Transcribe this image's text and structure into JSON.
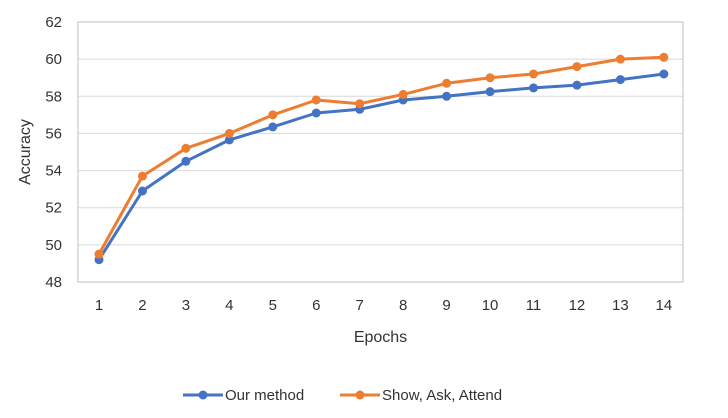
{
  "chart_data": {
    "type": "line",
    "title": "",
    "xlabel": "Epochs",
    "ylabel": "Accuracy",
    "x": [
      1,
      2,
      3,
      4,
      5,
      6,
      7,
      8,
      9,
      10,
      11,
      12,
      13,
      14
    ],
    "ylim": [
      48,
      62
    ],
    "yticks": [
      48,
      50,
      52,
      54,
      56,
      58,
      60,
      62
    ],
    "grid": "horizontal",
    "legend_position": "bottom",
    "series": [
      {
        "name": "Our method",
        "color": "#4472C4",
        "values": [
          49.2,
          52.9,
          54.5,
          55.65,
          56.35,
          57.1,
          57.3,
          57.8,
          58.0,
          58.25,
          58.45,
          58.6,
          58.9,
          59.2
        ]
      },
      {
        "name": "Show, Ask, Attend",
        "color": "#ED7D31",
        "values": [
          49.5,
          53.7,
          55.2,
          56.0,
          57.0,
          57.8,
          57.6,
          58.1,
          58.7,
          59.0,
          59.2,
          59.6,
          60.0,
          60.1
        ]
      }
    ]
  }
}
